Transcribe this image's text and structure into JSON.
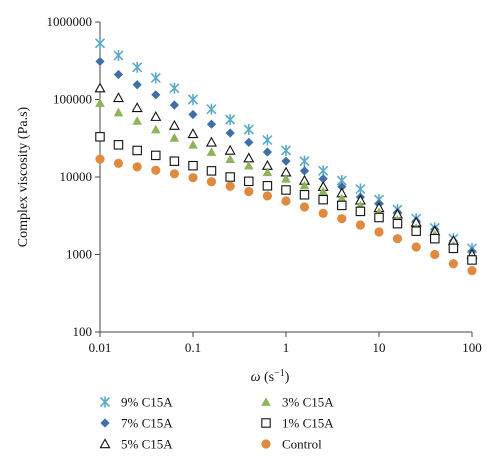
{
  "chart_data": {
    "type": "scatter",
    "title": "",
    "xlabel_symbol": "ω",
    "xlabel_unit": " (s",
    "xlabel_exp": "−1",
    "xlabel_close": ")",
    "ylabel": "Complex viscosity (Pa.s)",
    "x_scale": "log",
    "y_scale": "log",
    "xlim": [
      0.01,
      100
    ],
    "ylim": [
      100,
      1000000
    ],
    "x_ticks": [
      0.01,
      0.1,
      1,
      10,
      100
    ],
    "x_tick_labels": [
      "0.01",
      "0.1",
      "1",
      "10",
      "100"
    ],
    "y_ticks": [
      100,
      1000,
      10000,
      100000,
      1000000
    ],
    "y_tick_labels": [
      "100",
      "1000",
      "10000",
      "100000",
      "1000000"
    ],
    "grid": false,
    "legend_position": "bottom",
    "x": [
      0.01,
      0.0158,
      0.0251,
      0.0398,
      0.0631,
      0.1,
      0.158,
      0.251,
      0.398,
      0.631,
      1,
      1.58,
      2.51,
      3.98,
      6.31,
      10,
      15.8,
      25.1,
      39.8,
      63.1,
      100
    ],
    "series": [
      {
        "name": "9% C15A",
        "marker": "asterisk",
        "color": "#5aa9c9",
        "values": [
          530000,
          370000,
          260000,
          190000,
          140000,
          100000,
          75000,
          55000,
          41000,
          30000,
          22000,
          16000,
          12000,
          9000,
          7000,
          5100,
          3800,
          2900,
          2200,
          1600,
          1200
        ]
      },
      {
        "name": "7% C15A",
        "marker": "diamond",
        "color": "#3f6fa8",
        "values": [
          310000,
          210000,
          155000,
          115000,
          85000,
          64000,
          48000,
          37000,
          28000,
          21000,
          16000,
          12000,
          9500,
          7500,
          5500,
          4500,
          3500,
          2700,
          2100,
          1500,
          1100
        ]
      },
      {
        "name": "5% C15A",
        "marker": "triangle-open",
        "color": "#111111",
        "values": [
          140000,
          105000,
          78000,
          60000,
          46000,
          36000,
          28000,
          22000,
          17500,
          14000,
          11500,
          9000,
          7500,
          6200,
          5000,
          4000,
          3300,
          2600,
          2000,
          1500,
          1000
        ]
      },
      {
        "name": "3% C15A",
        "marker": "triangle-filled",
        "color": "#8fb35a",
        "values": [
          90000,
          68000,
          53000,
          41000,
          32000,
          26000,
          21000,
          17000,
          14000,
          11500,
          9500,
          7800,
          6500,
          5300,
          4300,
          3500,
          2800,
          2200,
          1800,
          1300,
          900
        ]
      },
      {
        "name": "1% C15A",
        "marker": "square-open",
        "color": "#111111",
        "values": [
          33000,
          26000,
          22000,
          19000,
          16000,
          14000,
          12000,
          10000,
          8800,
          7700,
          6800,
          5900,
          5100,
          4300,
          3600,
          3000,
          2500,
          2000,
          1600,
          1200,
          850
        ]
      },
      {
        "name": "Control",
        "marker": "circle",
        "color": "#e08a3f",
        "values": [
          17000,
          15000,
          13500,
          12200,
          11000,
          9800,
          8700,
          7600,
          6500,
          5700,
          4900,
          4100,
          3400,
          2900,
          2400,
          1950,
          1600,
          1250,
          1000,
          760,
          620
        ]
      }
    ]
  }
}
